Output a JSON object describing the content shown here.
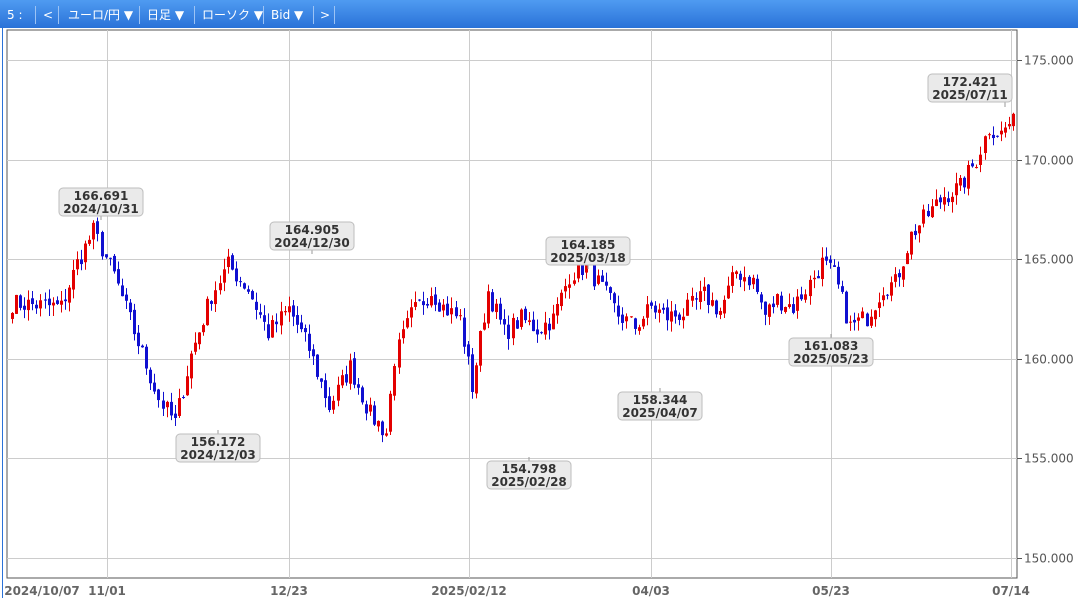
{
  "toolbar": {
    "items": [
      {
        "name": "slot-label",
        "label": "5 :"
      },
      {
        "name": "prev-button",
        "label": "<"
      },
      {
        "name": "pair-select",
        "label": "ユーロ/円 ▼"
      },
      {
        "name": "period-select",
        "label": "日足 ▼"
      },
      {
        "name": "type-select",
        "label": "ローソク ▼"
      },
      {
        "name": "price-select",
        "label": "Bid ▼"
      },
      {
        "name": "next-button",
        "label": ">"
      }
    ]
  },
  "chart_data": {
    "type": "candlestick",
    "ylim": [
      149.0,
      176.5
    ],
    "yticks": [
      "150.000",
      "155.000",
      "160.000",
      "165.000",
      "170.000",
      "175.000"
    ],
    "xticks": [
      "2024/10/07",
      "11/01",
      "12/23",
      "2025/02/12",
      "04/03",
      "05/23",
      "07/14"
    ],
    "colors": {
      "up": "#e30000",
      "down": "#1010d0",
      "grid": "#cccccc",
      "axis": "#555555"
    },
    "callouts": [
      {
        "price": "166.691",
        "date": "2024/10/31"
      },
      {
        "price": "156.172",
        "date": "2024/12/03"
      },
      {
        "price": "164.905",
        "date": "2024/12/30"
      },
      {
        "price": "154.798",
        "date": "2025/02/28"
      },
      {
        "price": "164.185",
        "date": "2025/03/18"
      },
      {
        "price": "158.344",
        "date": "2025/04/07"
      },
      {
        "price": "161.083",
        "date": "2025/05/23"
      },
      {
        "price": "172.421",
        "date": "2025/07/11"
      }
    ],
    "keypoints": [
      [
        0,
        162.8
      ],
      [
        12,
        162.6
      ],
      [
        16,
        164.8
      ],
      [
        20,
        166.4
      ],
      [
        25,
        164.2
      ],
      [
        31,
        160.8
      ],
      [
        36,
        158.0
      ],
      [
        40,
        156.8
      ],
      [
        44,
        160.2
      ],
      [
        49,
        163.2
      ],
      [
        53,
        164.7
      ],
      [
        58,
        163.5
      ],
      [
        63,
        161.3
      ],
      [
        68,
        162.5
      ],
      [
        73,
        160.5
      ],
      [
        78,
        157.6
      ],
      [
        83,
        159.6
      ],
      [
        88,
        157.2
      ],
      [
        92,
        156.3
      ],
      [
        94,
        160.0
      ],
      [
        98,
        162.2
      ],
      [
        103,
        163.4
      ],
      [
        106,
        162.6
      ],
      [
        110,
        162.0
      ],
      [
        113,
        158.6
      ],
      [
        117,
        163.4
      ],
      [
        121,
        161.3
      ],
      [
        125,
        162.0
      ],
      [
        129,
        161.5
      ],
      [
        133,
        162.0
      ],
      [
        137,
        164.2
      ],
      [
        141,
        164.7
      ],
      [
        145,
        163.5
      ],
      [
        149,
        162.2
      ],
      [
        153,
        161.6
      ],
      [
        157,
        162.6
      ],
      [
        161,
        162.1
      ],
      [
        165,
        162.3
      ],
      [
        170,
        163.2
      ],
      [
        174,
        162.4
      ],
      [
        178,
        164.4
      ],
      [
        182,
        163.9
      ],
      [
        185,
        162.2
      ],
      [
        188,
        163.0
      ],
      [
        192,
        162.6
      ],
      [
        196,
        163.8
      ],
      [
        199,
        164.8
      ],
      [
        202,
        164.2
      ],
      [
        206,
        161.6
      ],
      [
        210,
        162.1
      ],
      [
        214,
        163.6
      ],
      [
        217,
        163.8
      ],
      [
        221,
        166.2
      ],
      [
        224,
        167.0
      ],
      [
        229,
        168.2
      ],
      [
        233,
        168.6
      ],
      [
        237,
        170.0
      ],
      [
        240,
        171.6
      ],
      [
        243,
        171.3
      ],
      [
        245,
        171.8
      ]
    ]
  }
}
